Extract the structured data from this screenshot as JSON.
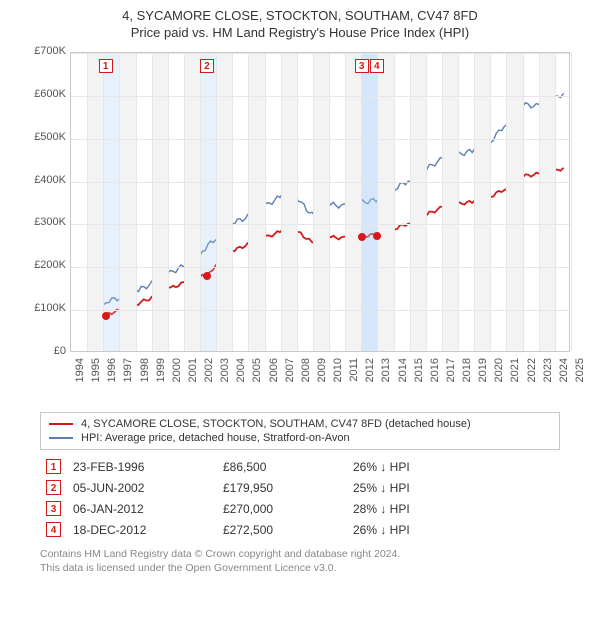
{
  "title_line1": "4, SYCAMORE CLOSE, STOCKTON, SOUTHAM, CV47 8FD",
  "title_line2": "Price paid vs. HM Land Registry's House Price Index (HPI)",
  "chart": {
    "type": "line",
    "x_start_year": 1994,
    "x_end_year": 2025,
    "y_min": 0,
    "y_max": 700000,
    "y_tick_step": 100000,
    "y_tick_labels": [
      "£0",
      "£100K",
      "£200K",
      "£300K",
      "£400K",
      "£500K",
      "£600K",
      "£700K"
    ],
    "x_tick_labels": [
      "1994",
      "1995",
      "1996",
      "1997",
      "1998",
      "1999",
      "2000",
      "2001",
      "2002",
      "2003",
      "2004",
      "2005",
      "2006",
      "2007",
      "2008",
      "2009",
      "2010",
      "2011",
      "2012",
      "2013",
      "2014",
      "2015",
      "2016",
      "2017",
      "2018",
      "2019",
      "2020",
      "2021",
      "2022",
      "2023",
      "2024",
      "2025"
    ],
    "background_color": "#ffffff",
    "grid_color": "#e7e7e7",
    "year_band_color": "#f3f3f3",
    "highlight_color": "rgba(160,200,240,0.25)",
    "plot_border_color": "#c9c9c9",
    "series": [
      {
        "id": "price_paid",
        "color": "#d81818",
        "width": 1.8,
        "label": "4, SYCAMORE CLOSE, STOCKTON, SOUTHAM, CV47 8FD (detached house)",
        "points": [
          [
            1996.15,
            86500
          ],
          [
            1997.0,
            95000
          ],
          [
            1998.0,
            110000
          ],
          [
            1999.0,
            125000
          ],
          [
            2000.0,
            145000
          ],
          [
            2001.0,
            160000
          ],
          [
            2002.0,
            175000
          ],
          [
            2002.43,
            179950
          ],
          [
            2003.0,
            200000
          ],
          [
            2004.0,
            235000
          ],
          [
            2005.0,
            250000
          ],
          [
            2006.0,
            265000
          ],
          [
            2007.0,
            280000
          ],
          [
            2007.7,
            290000
          ],
          [
            2008.3,
            275000
          ],
          [
            2009.0,
            255000
          ],
          [
            2010.0,
            268000
          ],
          [
            2011.0,
            265000
          ],
          [
            2012.0,
            270000
          ],
          [
            2012.96,
            272500
          ],
          [
            2014.0,
            285000
          ],
          [
            2015.0,
            300000
          ],
          [
            2016.0,
            318000
          ],
          [
            2017.0,
            335000
          ],
          [
            2018.0,
            345000
          ],
          [
            2019.0,
            350000
          ],
          [
            2020.0,
            360000
          ],
          [
            2021.0,
            380000
          ],
          [
            2022.0,
            410000
          ],
          [
            2023.0,
            415000
          ],
          [
            2024.0,
            420000
          ],
          [
            2024.7,
            430000
          ]
        ]
      },
      {
        "id": "hpi",
        "color": "#5b7fb5",
        "width": 1.4,
        "label": "HPI: Average price, detached house, Stratford-on-Avon",
        "points": [
          [
            1995.0,
            110000
          ],
          [
            1996.0,
            115000
          ],
          [
            1997.0,
            125000
          ],
          [
            1998.0,
            140000
          ],
          [
            1999.0,
            158000
          ],
          [
            2000.0,
            180000
          ],
          [
            2001.0,
            200000
          ],
          [
            2002.0,
            230000
          ],
          [
            2003.0,
            265000
          ],
          [
            2004.0,
            300000
          ],
          [
            2005.0,
            315000
          ],
          [
            2006.0,
            338000
          ],
          [
            2007.0,
            362000
          ],
          [
            2007.8,
            375000
          ],
          [
            2008.5,
            340000
          ],
          [
            2009.0,
            320000
          ],
          [
            2010.0,
            345000
          ],
          [
            2011.0,
            340000
          ],
          [
            2012.0,
            348000
          ],
          [
            2013.0,
            355000
          ],
          [
            2014.0,
            378000
          ],
          [
            2015.0,
            400000
          ],
          [
            2016.0,
            425000
          ],
          [
            2017.0,
            448000
          ],
          [
            2018.0,
            460000
          ],
          [
            2019.0,
            470000
          ],
          [
            2020.0,
            485000
          ],
          [
            2021.0,
            530000
          ],
          [
            2022.0,
            580000
          ],
          [
            2023.0,
            575000
          ],
          [
            2024.0,
            590000
          ],
          [
            2024.7,
            605000
          ]
        ]
      }
    ],
    "sale_points": [
      {
        "num": "1",
        "year": 1996.15,
        "price": 86500
      },
      {
        "num": "2",
        "year": 2002.43,
        "price": 179950
      },
      {
        "num": "3",
        "year": 2012.02,
        "price": 270000
      },
      {
        "num": "4",
        "year": 2012.96,
        "price": 272500
      }
    ],
    "marker_color": "#d81818",
    "marker_num_color": "#d81818"
  },
  "legend": {
    "items": [
      {
        "color": "#d81818",
        "label": "4, SYCAMORE CLOSE, STOCKTON, SOUTHAM, CV47 8FD (detached house)"
      },
      {
        "color": "#5b7fb5",
        "label": "HPI: Average price, detached house, Stratford-on-Avon"
      }
    ]
  },
  "sales_table": {
    "rows": [
      {
        "num": "1",
        "date": "23-FEB-1996",
        "price": "£86,500",
        "delta": "26% ↓ HPI"
      },
      {
        "num": "2",
        "date": "05-JUN-2002",
        "price": "£179,950",
        "delta": "25% ↓ HPI"
      },
      {
        "num": "3",
        "date": "06-JAN-2012",
        "price": "£270,000",
        "delta": "28% ↓ HPI"
      },
      {
        "num": "4",
        "date": "18-DEC-2012",
        "price": "£272,500",
        "delta": "26% ↓ HPI"
      }
    ],
    "num_border_color": "#d81818",
    "num_text_color": "#d81818"
  },
  "footer": {
    "line1": "Contains HM Land Registry data © Crown copyright and database right 2024.",
    "line2": "This data is licensed under the Open Government Licence v3.0."
  }
}
